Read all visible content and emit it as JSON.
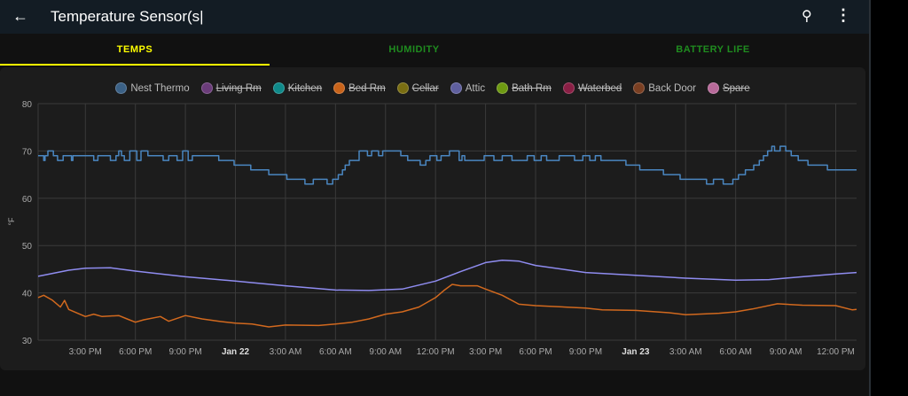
{
  "header": {
    "title": "Temperature Sensor(s|",
    "back_icon": "arrow-left-icon",
    "search_icon": "search-icon",
    "more_icon": "more-vert-icon"
  },
  "tabs": [
    {
      "label": "TEMPS",
      "color": "#ffff00",
      "active": true
    },
    {
      "label": "HUMIDITY",
      "color": "#1f8c1f"
    },
    {
      "label": "BATTERY LIFE",
      "color": "#1f8c1f"
    }
  ],
  "legend": [
    {
      "name": "Nest Thermo",
      "color": "#3b6186",
      "hidden": false
    },
    {
      "name": "Living Rm",
      "color": "#6b3c7a",
      "hidden": true
    },
    {
      "name": "Kitchen",
      "color": "#0f8a8a",
      "hidden": true
    },
    {
      "name": "Bed Rm",
      "color": "#c8631a",
      "hidden": true
    },
    {
      "name": "Cellar",
      "color": "#7a6e12",
      "hidden": true
    },
    {
      "name": "Attic",
      "color": "#5f5f9e",
      "hidden": false
    },
    {
      "name": "Bath Rm",
      "color": "#6e9a12",
      "hidden": true
    },
    {
      "name": "Waterbed",
      "color": "#8a1f45",
      "hidden": true
    },
    {
      "name": "Back Door",
      "color": "#7a3f22",
      "hidden": false
    },
    {
      "name": "Spare",
      "color": "#b86a9a",
      "hidden": true
    }
  ],
  "chart_data": {
    "type": "line",
    "ylabel": "°F",
    "ylim": [
      30,
      80
    ],
    "yticks": [
      "30",
      "40",
      "50",
      "60",
      "70",
      "80"
    ],
    "xlim": [
      "Jan 21 12:10",
      "Jan 23 13:15"
    ],
    "xticks": [
      {
        "t": "Jan 21 15:00",
        "label": "3:00 PM"
      },
      {
        "t": "Jan 21 18:00",
        "label": "6:00 PM"
      },
      {
        "t": "Jan 21 21:00",
        "label": "9:00 PM"
      },
      {
        "t": "Jan 22 00:00",
        "label": "Jan 22",
        "bold": true
      },
      {
        "t": "Jan 22 03:00",
        "label": "3:00 AM"
      },
      {
        "t": "Jan 22 06:00",
        "label": "6:00 AM"
      },
      {
        "t": "Jan 22 09:00",
        "label": "9:00 AM"
      },
      {
        "t": "Jan 22 12:00",
        "label": "12:00 PM"
      },
      {
        "t": "Jan 22 15:00",
        "label": "3:00 PM"
      },
      {
        "t": "Jan 22 18:00",
        "label": "6:00 PM"
      },
      {
        "t": "Jan 22 21:00",
        "label": "9:00 PM"
      },
      {
        "t": "Jan 23 00:00",
        "label": "Jan 23",
        "bold": true
      },
      {
        "t": "Jan 23 03:00",
        "label": "3:00 AM"
      },
      {
        "t": "Jan 23 06:00",
        "label": "6:00 AM"
      },
      {
        "t": "Jan 23 09:00",
        "label": "9:00 AM"
      },
      {
        "t": "Jan 23 12:00",
        "label": "12:00 PM"
      }
    ],
    "grid": true,
    "series": [
      {
        "name": "Nest Thermo",
        "color": "#4a86c0",
        "step": true,
        "points": [
          [
            "Jan 21 12:10",
            69
          ],
          [
            "Jan 21 12:30",
            68
          ],
          [
            "Jan 21 12:35",
            69
          ],
          [
            "Jan 21 12:45",
            70
          ],
          [
            "Jan 21 13:05",
            69
          ],
          [
            "Jan 21 13:20",
            68
          ],
          [
            "Jan 21 13:40",
            69
          ],
          [
            "Jan 21 14:10",
            68
          ],
          [
            "Jan 21 14:15",
            69
          ],
          [
            "Jan 21 15:30",
            68
          ],
          [
            "Jan 21 15:45",
            69
          ],
          [
            "Jan 21 16:30",
            68
          ],
          [
            "Jan 21 16:50",
            69
          ],
          [
            "Jan 21 17:00",
            70
          ],
          [
            "Jan 21 17:10",
            69
          ],
          [
            "Jan 21 17:20",
            68
          ],
          [
            "Jan 21 17:40",
            70
          ],
          [
            "Jan 21 18:05",
            68
          ],
          [
            "Jan 21 18:20",
            70
          ],
          [
            "Jan 21 18:45",
            69
          ],
          [
            "Jan 21 19:40",
            68
          ],
          [
            "Jan 21 20:00",
            69
          ],
          [
            "Jan 21 20:30",
            68
          ],
          [
            "Jan 21 20:50",
            70
          ],
          [
            "Jan 21 21:10",
            68
          ],
          [
            "Jan 21 21:25",
            69
          ],
          [
            "Jan 21 23:00",
            68
          ],
          [
            "Jan 21 23:55",
            67
          ],
          [
            "Jan 22 00:55",
            66
          ],
          [
            "Jan 22 02:00",
            65
          ],
          [
            "Jan 22 03:05",
            64
          ],
          [
            "Jan 22 04:10",
            63
          ],
          [
            "Jan 22 04:40",
            64
          ],
          [
            "Jan 22 05:30",
            63
          ],
          [
            "Jan 22 05:50",
            64
          ],
          [
            "Jan 22 06:10",
            65
          ],
          [
            "Jan 22 06:25",
            66
          ],
          [
            "Jan 22 06:35",
            67
          ],
          [
            "Jan 22 06:50",
            68
          ],
          [
            "Jan 22 07:25",
            70
          ],
          [
            "Jan 22 07:55",
            69
          ],
          [
            "Jan 22 08:10",
            70
          ],
          [
            "Jan 22 08:35",
            69
          ],
          [
            "Jan 22 08:50",
            70
          ],
          [
            "Jan 22 09:55",
            69
          ],
          [
            "Jan 22 10:20",
            68
          ],
          [
            "Jan 22 11:05",
            67
          ],
          [
            "Jan 22 11:25",
            68
          ],
          [
            "Jan 22 11:40",
            69
          ],
          [
            "Jan 22 12:05",
            68
          ],
          [
            "Jan 22 12:20",
            69
          ],
          [
            "Jan 22 12:50",
            70
          ],
          [
            "Jan 22 13:25",
            68
          ],
          [
            "Jan 22 13:35",
            69
          ],
          [
            "Jan 22 13:45",
            68
          ],
          [
            "Jan 22 14:55",
            69
          ],
          [
            "Jan 22 15:30",
            68
          ],
          [
            "Jan 22 16:00",
            69
          ],
          [
            "Jan 22 16:35",
            68
          ],
          [
            "Jan 22 17:30",
            69
          ],
          [
            "Jan 22 17:55",
            68
          ],
          [
            "Jan 22 18:20",
            69
          ],
          [
            "Jan 22 18:40",
            68
          ],
          [
            "Jan 22 19:25",
            69
          ],
          [
            "Jan 22 20:20",
            68
          ],
          [
            "Jan 22 20:50",
            69
          ],
          [
            "Jan 22 21:15",
            68
          ],
          [
            "Jan 22 21:35",
            69
          ],
          [
            "Jan 22 21:55",
            68
          ],
          [
            "Jan 22 23:25",
            67
          ],
          [
            "Jan 23 00:15",
            66
          ],
          [
            "Jan 23 01:40",
            65
          ],
          [
            "Jan 23 02:40",
            64
          ],
          [
            "Jan 23 04:15",
            63
          ],
          [
            "Jan 23 04:40",
            64
          ],
          [
            "Jan 23 05:15",
            63
          ],
          [
            "Jan 23 05:50",
            64
          ],
          [
            "Jan 23 06:10",
            65
          ],
          [
            "Jan 23 06:35",
            66
          ],
          [
            "Jan 23 07:05",
            67
          ],
          [
            "Jan 23 07:25",
            68
          ],
          [
            "Jan 23 07:40",
            69
          ],
          [
            "Jan 23 07:55",
            70
          ],
          [
            "Jan 23 08:10",
            71
          ],
          [
            "Jan 23 08:20",
            70
          ],
          [
            "Jan 23 08:40",
            71
          ],
          [
            "Jan 23 09:00",
            70
          ],
          [
            "Jan 23 09:20",
            69
          ],
          [
            "Jan 23 09:45",
            68
          ],
          [
            "Jan 23 10:20",
            67
          ],
          [
            "Jan 23 11:30",
            66
          ],
          [
            "Jan 23 13:15",
            66
          ]
        ]
      },
      {
        "name": "Attic",
        "color": "#8f8cf0",
        "step": false,
        "points": [
          [
            "Jan 21 12:10",
            43.5
          ],
          [
            "Jan 21 14:00",
            44.8
          ],
          [
            "Jan 21 15:00",
            45.2
          ],
          [
            "Jan 21 16:30",
            45.3
          ],
          [
            "Jan 21 18:00",
            44.6
          ],
          [
            "Jan 21 21:00",
            43.4
          ],
          [
            "Jan 22 00:00",
            42.5
          ],
          [
            "Jan 22 03:00",
            41.5
          ],
          [
            "Jan 22 06:00",
            40.6
          ],
          [
            "Jan 22 08:00",
            40.5
          ],
          [
            "Jan 22 10:00",
            40.8
          ],
          [
            "Jan 22 12:00",
            42.5
          ],
          [
            "Jan 22 13:30",
            44.5
          ],
          [
            "Jan 22 15:00",
            46.4
          ],
          [
            "Jan 22 16:00",
            46.9
          ],
          [
            "Jan 22 17:00",
            46.7
          ],
          [
            "Jan 22 18:00",
            45.8
          ],
          [
            "Jan 22 21:00",
            44.3
          ],
          [
            "Jan 23 00:00",
            43.7
          ],
          [
            "Jan 23 03:00",
            43.1
          ],
          [
            "Jan 23 06:00",
            42.7
          ],
          [
            "Jan 23 08:00",
            42.8
          ],
          [
            "Jan 23 10:00",
            43.4
          ],
          [
            "Jan 23 12:00",
            44
          ],
          [
            "Jan 23 13:15",
            44.3
          ]
        ]
      },
      {
        "name": "Back Door",
        "color": "#d2691e",
        "step": false,
        "points": [
          [
            "Jan 21 12:10",
            39
          ],
          [
            "Jan 21 12:30",
            39.5
          ],
          [
            "Jan 21 13:00",
            38.5
          ],
          [
            "Jan 21 13:30",
            37
          ],
          [
            "Jan 21 13:45",
            38.4
          ],
          [
            "Jan 21 14:00",
            36.5
          ],
          [
            "Jan 21 15:00",
            35
          ],
          [
            "Jan 21 15:30",
            35.5
          ],
          [
            "Jan 21 16:00",
            35
          ],
          [
            "Jan 21 17:00",
            35.2
          ],
          [
            "Jan 21 17:30",
            34.5
          ],
          [
            "Jan 21 18:00",
            33.8
          ],
          [
            "Jan 21 18:30",
            34.3
          ],
          [
            "Jan 21 19:30",
            35
          ],
          [
            "Jan 21 20:00",
            34
          ],
          [
            "Jan 21 21:00",
            35.2
          ],
          [
            "Jan 21 22:00",
            34.5
          ],
          [
            "Jan 21 23:00",
            34
          ],
          [
            "Jan 22 00:00",
            33.6
          ],
          [
            "Jan 22 01:00",
            33.4
          ],
          [
            "Jan 22 02:00",
            32.8
          ],
          [
            "Jan 22 03:00",
            33.2
          ],
          [
            "Jan 22 05:00",
            33.1
          ],
          [
            "Jan 22 06:00",
            33.4
          ],
          [
            "Jan 22 07:00",
            33.8
          ],
          [
            "Jan 22 08:00",
            34.5
          ],
          [
            "Jan 22 09:00",
            35.5
          ],
          [
            "Jan 22 10:00",
            36
          ],
          [
            "Jan 22 11:00",
            37
          ],
          [
            "Jan 22 12:00",
            39
          ],
          [
            "Jan 22 12:30",
            40.5
          ],
          [
            "Jan 22 13:00",
            41.8
          ],
          [
            "Jan 22 13:30",
            41.5
          ],
          [
            "Jan 22 14:30",
            41.5
          ],
          [
            "Jan 22 15:00",
            40.8
          ],
          [
            "Jan 22 16:00",
            39.5
          ],
          [
            "Jan 22 17:00",
            37.6
          ],
          [
            "Jan 22 18:00",
            37.3
          ],
          [
            "Jan 22 21:00",
            36.8
          ],
          [
            "Jan 22 22:00",
            36.4
          ],
          [
            "Jan 23 00:00",
            36.3
          ],
          [
            "Jan 23 02:00",
            35.8
          ],
          [
            "Jan 23 03:00",
            35.4
          ],
          [
            "Jan 23 05:00",
            35.7
          ],
          [
            "Jan 23 06:00",
            36
          ],
          [
            "Jan 23 07:00",
            36.6
          ],
          [
            "Jan 23 08:30",
            37.7
          ],
          [
            "Jan 23 10:00",
            37.4
          ],
          [
            "Jan 23 12:00",
            37.3
          ],
          [
            "Jan 23 13:00",
            36.4
          ],
          [
            "Jan 23 13:15",
            36.5
          ]
        ]
      }
    ]
  }
}
